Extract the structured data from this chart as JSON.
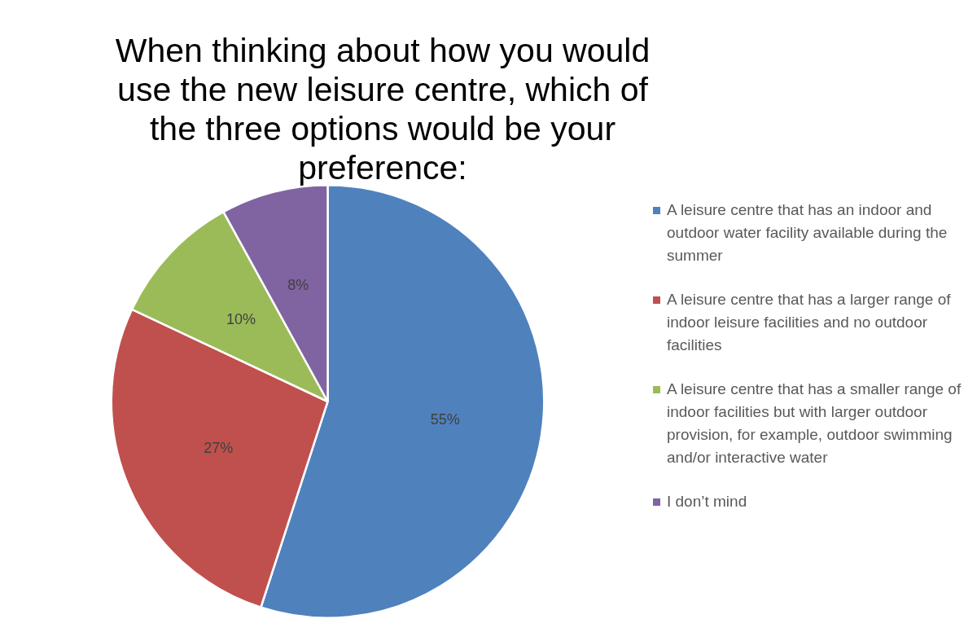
{
  "chart_data": {
    "type": "pie",
    "title": "When thinking about how you would use the new leisure centre, which of the three options would be your preference:",
    "categories": [
      "A leisure centre that has an indoor and outdoor water facility available during the summer",
      "A leisure centre that has a larger range of indoor leisure facilities and no outdoor facilities",
      "A leisure centre that has a smaller range of indoor facilities but with larger outdoor provision, for example, outdoor swimming and/or interactive water",
      "I don’t mind"
    ],
    "values": [
      55,
      27,
      10,
      8
    ],
    "colors": [
      "#4f81bd",
      "#c0504d",
      "#9bbb59",
      "#8064a2"
    ],
    "value_labels": [
      "55%",
      "27%",
      "10%",
      "8%"
    ],
    "legend": "right"
  }
}
